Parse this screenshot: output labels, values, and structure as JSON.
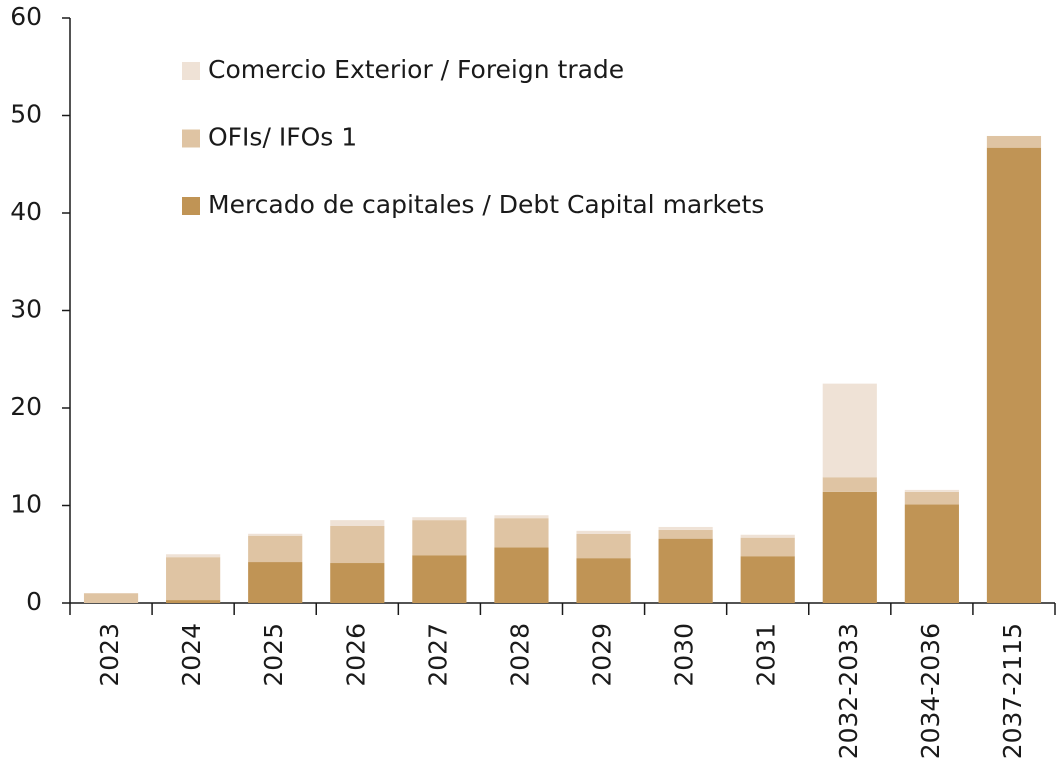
{
  "chart_data": {
    "type": "stacked_bar",
    "categories": [
      "2023",
      "2024",
      "2025",
      "2026",
      "2027",
      "2028",
      "2029",
      "2030",
      "2031",
      "2032-2033",
      "2034-2036",
      "2037-2115"
    ],
    "series": [
      {
        "name": "Mercado de capitales / Debt Capital markets",
        "color": "#c09455",
        "values": [
          0,
          0.3,
          4.2,
          4.1,
          4.9,
          5.7,
          4.6,
          6.6,
          4.8,
          11.4,
          10.1,
          46.7
        ]
      },
      {
        "name": "OFIs/ IFOs 1",
        "color": "#dfc4a3",
        "values": [
          1.0,
          4.4,
          2.7,
          3.8,
          3.6,
          3.0,
          2.5,
          0.9,
          1.9,
          1.5,
          1.3,
          1.2
        ]
      },
      {
        "name": "Comercio Exterior / Foreign trade",
        "color": "#efe2d6",
        "values": [
          0,
          0.3,
          0.2,
          0.6,
          0.3,
          0.3,
          0.3,
          0.3,
          0.3,
          9.6,
          0.2,
          0
        ]
      }
    ],
    "ylim": [
      0,
      60
    ],
    "yticks": [
      0,
      10,
      20,
      30,
      40,
      50,
      60
    ],
    "grid": false,
    "legend": "top-left"
  }
}
